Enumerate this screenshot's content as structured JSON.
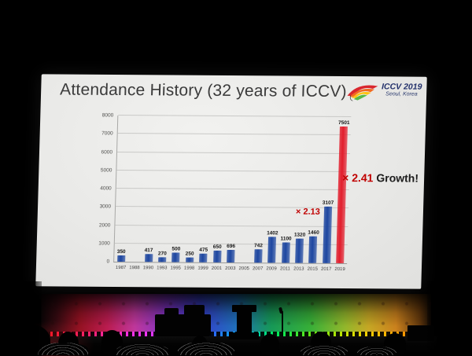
{
  "slide": {
    "title": "Attendance History (32 years of ICCV)",
    "logo": {
      "line1": "ICCV 2019",
      "line2": "Seoul, Korea"
    },
    "annotations": {
      "growth_2017": {
        "text": "× 2.13"
      },
      "growth_2019": {
        "multiplier": "× 2.41",
        "suffix": "Growth!"
      }
    }
  },
  "chart_data": {
    "type": "bar",
    "title": "Attendance History (32 years of ICCV)",
    "xlabel": "",
    "ylabel": "",
    "categories": [
      "1987",
      "1988",
      "1990",
      "1993",
      "1995",
      "1998",
      "1999",
      "2001",
      "2003",
      "2005",
      "2007",
      "2009",
      "2011",
      "2013",
      "2015",
      "2017",
      "2019"
    ],
    "values": [
      350,
      null,
      417,
      270,
      500,
      250,
      475,
      650,
      696,
      null,
      742,
      1402,
      1100,
      1320,
      1460,
      3107,
      7501
    ],
    "ylim": [
      0,
      8000
    ],
    "yticks": [
      0,
      1000,
      2000,
      3000,
      4000,
      5000,
      6000,
      7000,
      8000
    ],
    "grid": true,
    "legend": "none",
    "value_labels": true,
    "highlight_category": "2019",
    "bar_color_default": "#1d46a0",
    "bar_color_highlight": "#e21d2c",
    "annotations": [
      {
        "text": "× 2.13",
        "near_category": "2017",
        "color": "#c00000"
      },
      {
        "text": "× 2.41 Growth!",
        "near_category": "2019",
        "color": "#c00000"
      }
    ]
  },
  "colors": {
    "slide_background": "#eaeae8",
    "title_text": "#3b3b3b",
    "grid_line": "#c9c9c7",
    "annotation_red": "#c00000",
    "bar_blue": "#1d46a0",
    "bar_red": "#e21d2c"
  }
}
